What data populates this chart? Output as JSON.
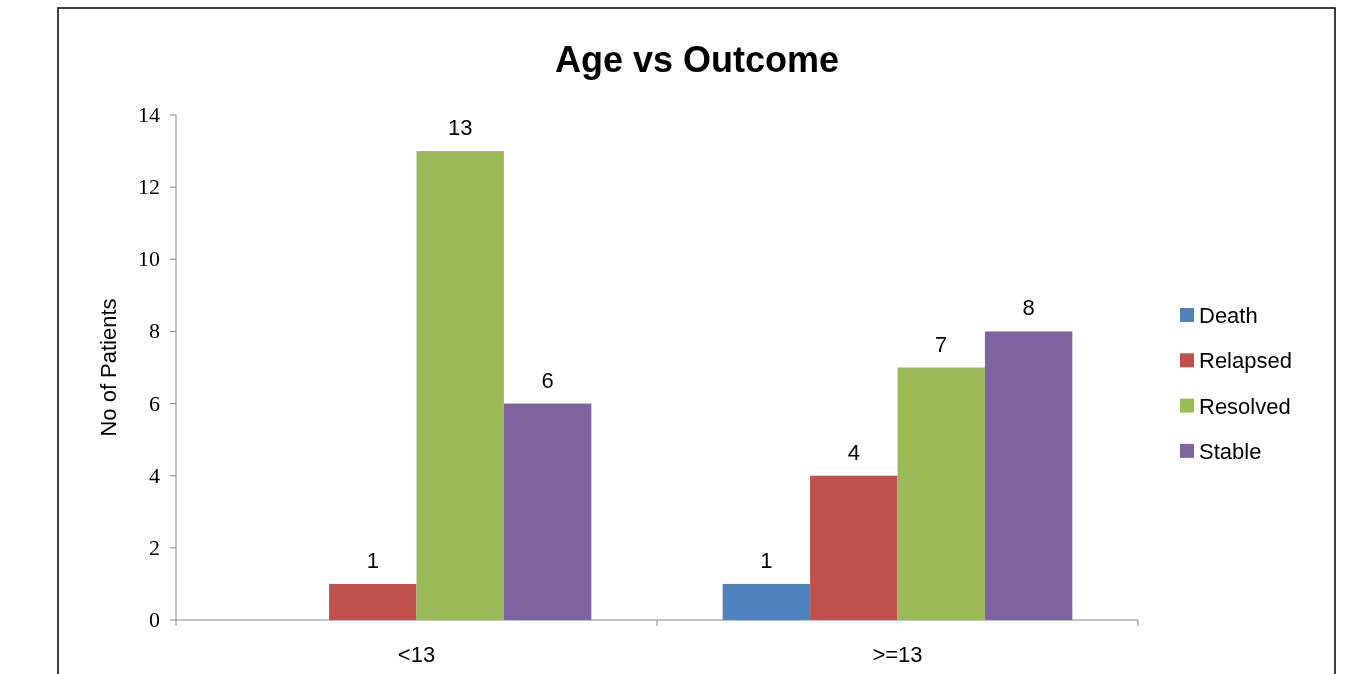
{
  "chart_data": {
    "type": "bar",
    "title": "Age vs Outcome",
    "ylabel": "No of Patients",
    "categories": [
      "<13",
      ">=13"
    ],
    "series": [
      {
        "name": "Death",
        "color": "#4f81bd",
        "values": [
          null,
          1
        ]
      },
      {
        "name": "Relapsed",
        "color": "#c0504d",
        "values": [
          1,
          4
        ]
      },
      {
        "name": "Resolved",
        "color": "#9bbb59",
        "values": [
          13,
          7
        ]
      },
      {
        "name": "Stable",
        "color": "#8064a2",
        "values": [
          6,
          8
        ]
      }
    ],
    "ylim": [
      0,
      14
    ],
    "yticks": [
      0,
      2,
      4,
      6,
      8,
      10,
      12,
      14
    ],
    "grid": false,
    "legend": "right",
    "data_labels": true
  }
}
